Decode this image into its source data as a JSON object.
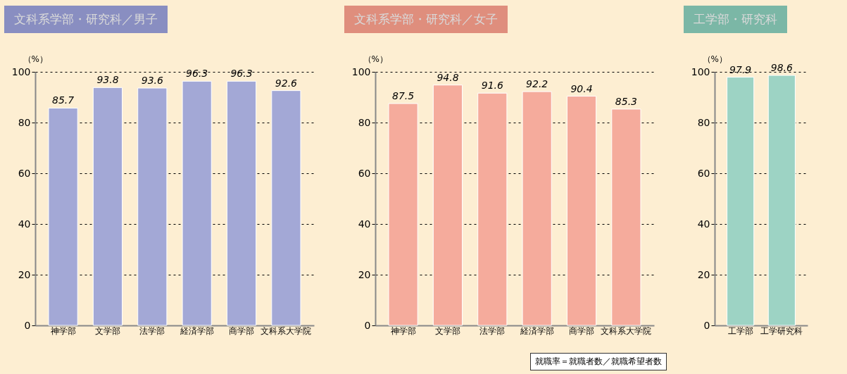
{
  "chart_data": [
    {
      "type": "bar",
      "title": "文科系学部・研究科／男子",
      "categories": [
        "神学部",
        "文学部",
        "法学部",
        "経済学部",
        "商学部",
        "文科系大学院"
      ],
      "values": [
        85.7,
        93.8,
        93.6,
        96.3,
        96.3,
        92.6
      ],
      "color": "#a3a8d6",
      "ylabel": "（%）",
      "ylim": [
        0,
        100
      ],
      "yticks": [
        0,
        20,
        40,
        60,
        80,
        100
      ],
      "grid": "y",
      "data_labels": true
    },
    {
      "type": "bar",
      "title": "文科系学部・研究科／女子",
      "categories": [
        "神学部",
        "文学部",
        "法学部",
        "経済学部",
        "商学部",
        "文科系大学院"
      ],
      "values": [
        87.5,
        94.8,
        91.6,
        92.2,
        90.4,
        85.3
      ],
      "color": "#f5ab9c",
      "ylabel": "（%）",
      "ylim": [
        0,
        100
      ],
      "yticks": [
        0,
        20,
        40,
        60,
        80,
        100
      ],
      "grid": "y",
      "data_labels": true,
      "annotations": [
        "就職率＝就職者数／就職希望者数"
      ]
    },
    {
      "type": "bar",
      "title": "工学部・研究科",
      "categories": [
        "工学部",
        "工学研究科"
      ],
      "values": [
        97.9,
        98.6
      ],
      "color": "#9dd3c4",
      "ylabel": "（%）",
      "ylim": [
        0,
        100
      ],
      "yticks": [
        0,
        20,
        40,
        60,
        80,
        100
      ],
      "grid": "y",
      "data_labels": true
    }
  ]
}
